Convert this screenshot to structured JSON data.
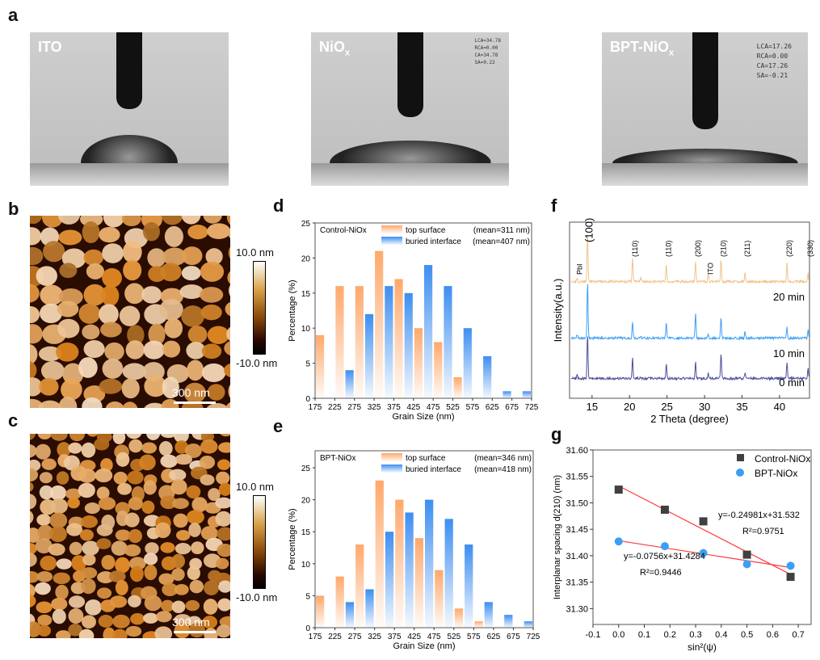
{
  "panels": {
    "a": "a",
    "b": "b",
    "c": "c",
    "d": "d",
    "e": "e",
    "f": "f",
    "g": "g"
  },
  "contact_angle": [
    {
      "title": "ITO",
      "sub": "",
      "readout": []
    },
    {
      "title": "NiO",
      "sub": "x",
      "readout": [
        "LCA=34.78",
        "RCA=0.00",
        "CA=34.78",
        "SA=0.22"
      ]
    },
    {
      "title": "BPT-NiO",
      "sub": "x",
      "readout": [
        "LCA=17.26",
        "RCA=0.00",
        "CA=17.26",
        "SA=-0.21"
      ]
    }
  ],
  "afm": {
    "colorbar_max": "10.0 nm",
    "colorbar_min": "-10.0 nm",
    "scale_bar": "300 nm"
  },
  "colors": {
    "top_surface": "#ffa86b",
    "buried_interface": "#3d8ef0",
    "xrd_20": "#f0c48a",
    "xrd_10": "#3fa0f5",
    "xrd_0": "#4b4f9c",
    "fit": "#ff3b3b",
    "control": "#404040",
    "bpt": "#3aa0f5"
  },
  "chart_data": [
    {
      "type": "bar",
      "panel": "d",
      "sample_label": "Control-NiOx",
      "xlabel": "Grain Size (nm)",
      "ylabel": "Percentage (%)",
      "xticks": [
        175,
        225,
        275,
        325,
        375,
        425,
        475,
        525,
        575,
        625,
        675,
        725
      ],
      "yticks": [
        0,
        5,
        10,
        15,
        20,
        25
      ],
      "ylim": [
        0,
        25
      ],
      "legend": [
        {
          "name": "top surface",
          "mean": "(mean=311 nm)"
        },
        {
          "name": "buried interface",
          "mean": "(mean=407 nm)"
        }
      ],
      "series": [
        {
          "name": "top surface",
          "bins": [
            175,
            225,
            275,
            325,
            375,
            425,
            475,
            525
          ],
          "values": [
            9,
            16,
            16,
            21,
            17,
            10,
            8,
            3
          ]
        },
        {
          "name": "buried interface",
          "bins": [
            225,
            275,
            325,
            375,
            425,
            475,
            525,
            575,
            625,
            675
          ],
          "values": [
            4,
            12,
            16,
            15,
            19,
            16,
            10,
            6,
            1,
            1
          ]
        }
      ]
    },
    {
      "type": "bar",
      "panel": "e",
      "sample_label": "BPT-NiOx",
      "xlabel": "Grain Size (nm)",
      "ylabel": "Percentage (%)",
      "xticks": [
        175,
        225,
        275,
        325,
        375,
        425,
        475,
        525,
        575,
        625,
        675,
        725
      ],
      "yticks": [
        0,
        5,
        10,
        15,
        20,
        25
      ],
      "ylim": [
        0,
        27
      ],
      "legend": [
        {
          "name": "top surface",
          "mean": "(mean=346 nm)"
        },
        {
          "name": "buried interface",
          "mean": "(mean=418 nm)"
        }
      ],
      "series": [
        {
          "name": "top surface",
          "bins": [
            175,
            225,
            275,
            325,
            375,
            425,
            475,
            525,
            575
          ],
          "values": [
            5,
            8,
            13,
            23,
            20,
            14,
            9,
            3,
            1
          ]
        },
        {
          "name": "buried interface",
          "bins": [
            225,
            275,
            325,
            375,
            425,
            475,
            525,
            575,
            625,
            675
          ],
          "values": [
            4,
            6,
            15,
            18,
            20,
            17,
            13,
            4,
            2,
            1
          ]
        }
      ]
    },
    {
      "type": "line",
      "panel": "f",
      "xlabel": "2 Theta (degree)",
      "ylabel": "Intensity(a.u.)",
      "xlim": [
        12,
        44
      ],
      "xticks": [
        15,
        20,
        25,
        30,
        35,
        40
      ],
      "peak_labels": [
        {
          "x": 13.0,
          "label": "PbI"
        },
        {
          "x": 14.4,
          "label": "(100)"
        },
        {
          "x": 20.4,
          "label": "(110)"
        },
        {
          "x": 24.9,
          "label": "(110)"
        },
        {
          "x": 28.8,
          "label": "(200)"
        },
        {
          "x": 30.5,
          "label": "ITO"
        },
        {
          "x": 32.2,
          "label": "(210)"
        },
        {
          "x": 35.4,
          "label": "(211)"
        },
        {
          "x": 41.0,
          "label": "(220)"
        },
        {
          "x": 43.8,
          "label": "(330)"
        }
      ],
      "peaks_2theta": [
        13.0,
        14.4,
        20.4,
        21.5,
        24.9,
        28.8,
        30.5,
        32.2,
        35.4,
        41.0,
        43.8
      ],
      "series": [
        {
          "name": "20 min",
          "intensity": [
            0.5,
            6,
            3,
            0.4,
            2.2,
            2.6,
            1,
            2.8,
            1.2,
            2.4,
            1
          ]
        },
        {
          "name": "10 min",
          "intensity": [
            0.5,
            7,
            2.2,
            0.2,
            2,
            3.2,
            0.5,
            2.6,
            0.8,
            1.4,
            1
          ]
        },
        {
          "name": "0 min",
          "intensity": [
            0.5,
            5.6,
            2.6,
            0.2,
            1.8,
            2,
            0.6,
            3.1,
            0.8,
            2.1,
            1.3
          ]
        }
      ]
    },
    {
      "type": "scatter",
      "panel": "g",
      "xlabel": "sin²(ψ)",
      "ylabel": "Interplanar spacing d(210) (nm)",
      "xlim": [
        -0.1,
        0.75
      ],
      "ylim": [
        31.27,
        31.6
      ],
      "xticks": [
        "-0.1",
        "0.0",
        "0.1",
        "0.2",
        "0.3",
        "0.4",
        "0.5",
        "0.6",
        "0.7"
      ],
      "yticks": [
        "31.30",
        "31.35",
        "31.40",
        "31.45",
        "31.50",
        "31.55",
        "31.60"
      ],
      "series": [
        {
          "name": "Control-NiOx",
          "x": [
            0,
            0.18,
            0.33,
            0.5,
            0.67
          ],
          "y": [
            31.525,
            31.487,
            31.465,
            31.402,
            31.36
          ],
          "fit": {
            "slope": -0.24981,
            "intercept": 31.532,
            "eq": "y=-0.24981x+31.532",
            "r2": "R²=0.9751"
          }
        },
        {
          "name": "BPT-NiOx",
          "x": [
            0,
            0.18,
            0.33,
            0.5,
            0.67
          ],
          "y": [
            31.427,
            31.418,
            31.405,
            31.384,
            31.381
          ],
          "fit": {
            "slope": -0.0756,
            "intercept": 31.4284,
            "eq": "y=-0.0756x+31.4284",
            "r2": "R²=0.9446"
          }
        }
      ]
    }
  ]
}
